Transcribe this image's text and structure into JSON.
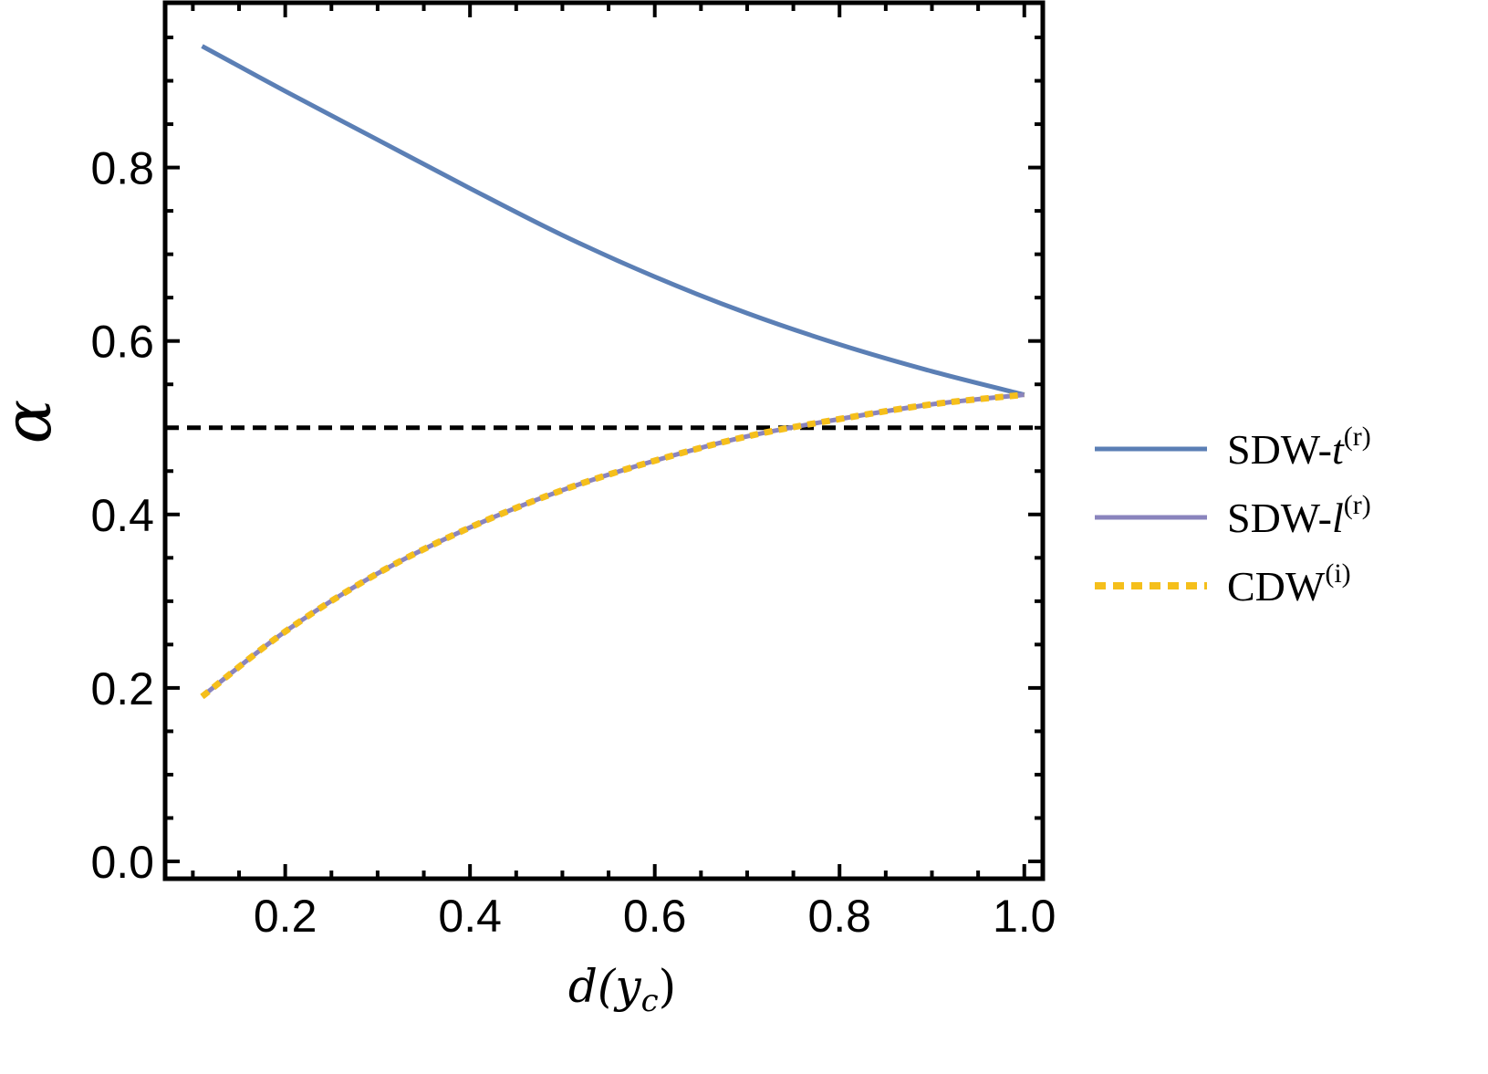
{
  "chart_data": {
    "type": "line",
    "xlabel": "d(y",
    "xlabel_sub": "c",
    "xlabel_close": ")",
    "ylabel": "α",
    "xlim": [
      0.07,
      1.02
    ],
    "ylim": [
      -0.02,
      0.99
    ],
    "x_ticks": [
      {
        "value": 0.2,
        "label": "0.2"
      },
      {
        "value": 0.4,
        "label": "0.4"
      },
      {
        "value": 0.6,
        "label": "0.6"
      },
      {
        "value": 0.8,
        "label": "0.8"
      },
      {
        "value": 1.0,
        "label": "1.0"
      }
    ],
    "y_ticks": [
      {
        "value": 0.0,
        "label": "0.0"
      },
      {
        "value": 0.2,
        "label": "0.2"
      },
      {
        "value": 0.4,
        "label": "0.4"
      },
      {
        "value": 0.6,
        "label": "0.6"
      },
      {
        "value": 0.8,
        "label": "0.8"
      }
    ],
    "grid": false,
    "legend_position": "right",
    "reference_line": {
      "y": 0.5,
      "style": "dashed",
      "color": "#000000"
    },
    "series": [
      {
        "name": "SDW-t",
        "name_sup": "(r)",
        "color": "#5b7fb5",
        "style": "solid",
        "x": [
          0.11,
          0.2,
          0.3,
          0.4,
          0.5,
          0.6,
          0.7,
          0.8,
          0.9,
          1.0
        ],
        "y": [
          0.94,
          0.888,
          0.832,
          0.776,
          0.722,
          0.674,
          0.632,
          0.596,
          0.565,
          0.538
        ]
      },
      {
        "name": "SDW-l",
        "name_sup": "(r)",
        "color": "#8a84bd",
        "style": "solid",
        "x": [
          0.11,
          0.2,
          0.3,
          0.4,
          0.5,
          0.6,
          0.7,
          0.8,
          0.9,
          1.0
        ],
        "y": [
          0.19,
          0.265,
          0.332,
          0.385,
          0.428,
          0.462,
          0.49,
          0.51,
          0.527,
          0.538
        ]
      },
      {
        "name": "CDW",
        "name_sup": "(i)",
        "color": "#f5bf1b",
        "style": "dotted",
        "x": [
          0.11,
          0.2,
          0.3,
          0.4,
          0.5,
          0.6,
          0.7,
          0.8,
          0.9,
          1.0
        ],
        "y": [
          0.19,
          0.265,
          0.332,
          0.385,
          0.428,
          0.462,
          0.49,
          0.51,
          0.527,
          0.538
        ]
      }
    ]
  }
}
